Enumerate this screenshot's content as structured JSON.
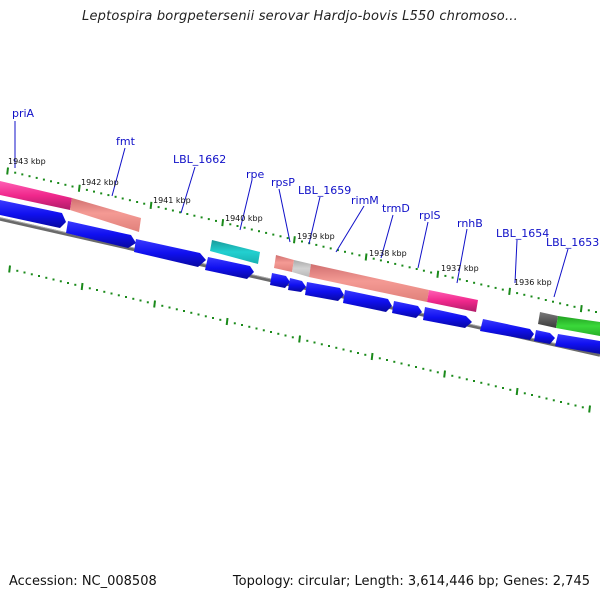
{
  "title": "Leptospira borgpetersenii serovar Hardjo-bovis L550 chromoso...",
  "footer": {
    "accession": "Accession: NC_008508",
    "stats": "Topology: circular; Length: 3,614,446 bp; Genes: 2,745"
  },
  "gene_labels": [
    "priA",
    "fmt",
    "LBL_1662",
    "rpe",
    "rpsP",
    "LBL_1659",
    "rimM",
    "trmD",
    "rplS",
    "rnhB",
    "LBL_1654",
    "LBL_1653"
  ],
  "kbp_labels": [
    "1943 kbp",
    "1942 kbp",
    "1941 kbp",
    "1940 kbp",
    "1939 kbp",
    "1938 kbp",
    "1937 kbp",
    "1936 kbp"
  ],
  "colors": {
    "magenta": "#f0288c",
    "salmon": "#f08a84",
    "blue": "#1010f0",
    "cyan": "#20c8c8",
    "gray": "#c8c8c8",
    "darkgray": "#585858",
    "green": "#30cc30",
    "tick": "#1a8a1a",
    "label": "#1010c8"
  }
}
